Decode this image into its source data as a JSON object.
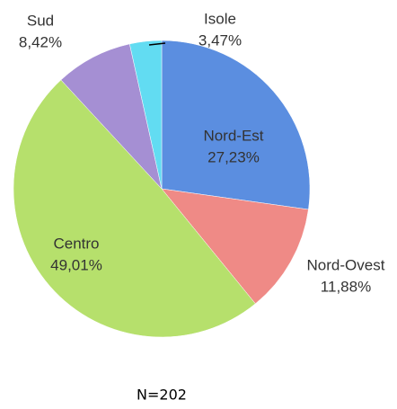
{
  "chart_data": {
    "type": "pie",
    "categories": [
      "Nord-Est",
      "Nord-Ovest",
      "Centro",
      "Sud",
      "Isole"
    ],
    "values": [
      27.23,
      11.88,
      49.01,
      8.42,
      3.47
    ],
    "value_labels": [
      "27,23%",
      "11,88%",
      "49,01%",
      "8,42%",
      "3,47%"
    ],
    "colors": [
      "#5b8ee0",
      "#ef8a86",
      "#b6e06c",
      "#a58fd3",
      "#62dcf2"
    ],
    "annotation": "N=202"
  }
}
